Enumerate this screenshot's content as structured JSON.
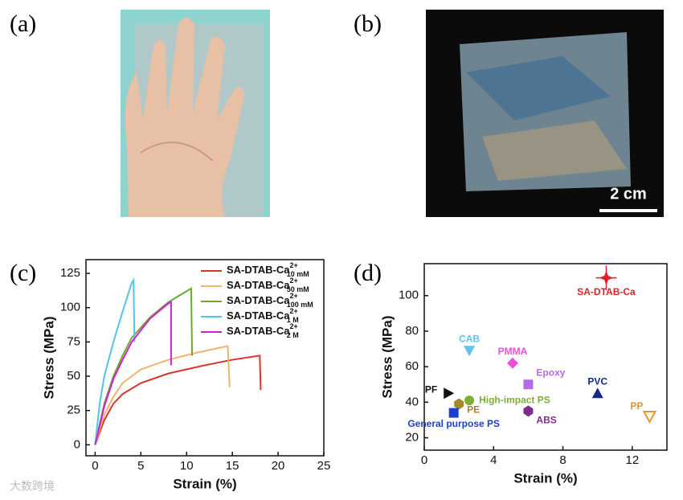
{
  "panels": {
    "a": "(a)",
    "b": "(b)",
    "c": "(c)",
    "d": "(d)"
  },
  "photo_b": {
    "scale_bar": "2 cm"
  },
  "watermark": "大数跨境",
  "chart_data": [
    {
      "type": "line",
      "xlabel": "Strain (%)",
      "ylabel": "Stress (MPa)",
      "xlim": [
        -1,
        25
      ],
      "ylim": [
        -8,
        135
      ],
      "xticks": [
        0,
        5,
        10,
        15,
        20,
        25
      ],
      "yticks": [
        0,
        25,
        50,
        75,
        100,
        125
      ],
      "series": [
        {
          "name": "SA-DTAB-Ca",
          "charge": "2+",
          "concentration": "10 mM",
          "color": "#d9342b",
          "x": [
            0,
            1,
            2,
            3,
            5,
            8,
            12,
            15,
            18,
            18.1
          ],
          "values": [
            0,
            18,
            30,
            37,
            45,
            52,
            58,
            62,
            65,
            40
          ]
        },
        {
          "name": "SA-DTAB-Ca",
          "charge": "2+",
          "concentration": "50 mM",
          "color": "#f4b26b",
          "x": [
            0,
            1,
            2,
            3,
            5,
            8,
            11,
            14.5,
            14.7
          ],
          "values": [
            0,
            22,
            35,
            45,
            55,
            62,
            67,
            72,
            42
          ]
        },
        {
          "name": "SA-DTAB-Ca",
          "charge": "2+",
          "concentration": "100 mM",
          "color": "#6aab2e",
          "x": [
            0,
            1,
            2,
            3,
            4,
            6,
            8,
            10,
            10.5,
            10.6
          ],
          "values": [
            0,
            30,
            50,
            65,
            78,
            93,
            104,
            112,
            114,
            65
          ]
        },
        {
          "name": "SA-DTAB-Ca",
          "charge": "2+",
          "concentration": "1 M",
          "color": "#55c2e8",
          "x": [
            0,
            0.5,
            1,
            2,
            3,
            4,
            4.2,
            4.3
          ],
          "values": [
            0,
            30,
            50,
            75,
            97,
            118,
            120,
            75
          ]
        },
        {
          "name": "SA-DTAB-Ca",
          "charge": "2+",
          "concentration": "2 M",
          "color": "#d21fd6",
          "x": [
            0,
            1,
            2,
            3,
            4,
            6,
            8,
            8.3,
            8.3
          ],
          "values": [
            0,
            28,
            48,
            62,
            75,
            92,
            103,
            104,
            58
          ]
        }
      ]
    },
    {
      "type": "scatter",
      "xlabel": "Strain (%)",
      "ylabel": "Stress (MPa)",
      "xlim": [
        0,
        14
      ],
      "ylim": [
        13,
        118
      ],
      "xticks": [
        0,
        4,
        8,
        12
      ],
      "yticks": [
        20,
        40,
        60,
        80,
        100
      ],
      "categories": [
        "SA-DTAB-Ca",
        "CAB",
        "PMMA",
        "Epoxy",
        "PVC",
        "PF",
        "High-impact PS",
        "PE",
        "ABS",
        "General purpose PS",
        "PP"
      ],
      "x": [
        10.5,
        2.6,
        5.1,
        6,
        10,
        1.4,
        2.6,
        2,
        6,
        1.7,
        13
      ],
      "values": [
        110,
        69,
        62,
        50,
        45,
        45,
        41,
        39,
        35,
        34,
        32
      ],
      "x_error": [
        0.6,
        null,
        null,
        null,
        null,
        null,
        null,
        null,
        null,
        null,
        null
      ],
      "y_error": [
        7,
        null,
        null,
        null,
        null,
        null,
        null,
        null,
        null,
        null,
        null
      ],
      "markers": [
        "star",
        "triangle-down",
        "diamond",
        "square",
        "triangle-up",
        "triangle-right",
        "circle",
        "hexagon",
        "hexagon",
        "square",
        "triangle-down-open"
      ],
      "colors": [
        "#e0202a",
        "#5fc4ea",
        "#ee4fd9",
        "#b66be6",
        "#162a85",
        "#111111",
        "#7bb032",
        "#a8852a",
        "#7c2c8f",
        "#1c3fd0",
        "#e9962a"
      ]
    }
  ]
}
